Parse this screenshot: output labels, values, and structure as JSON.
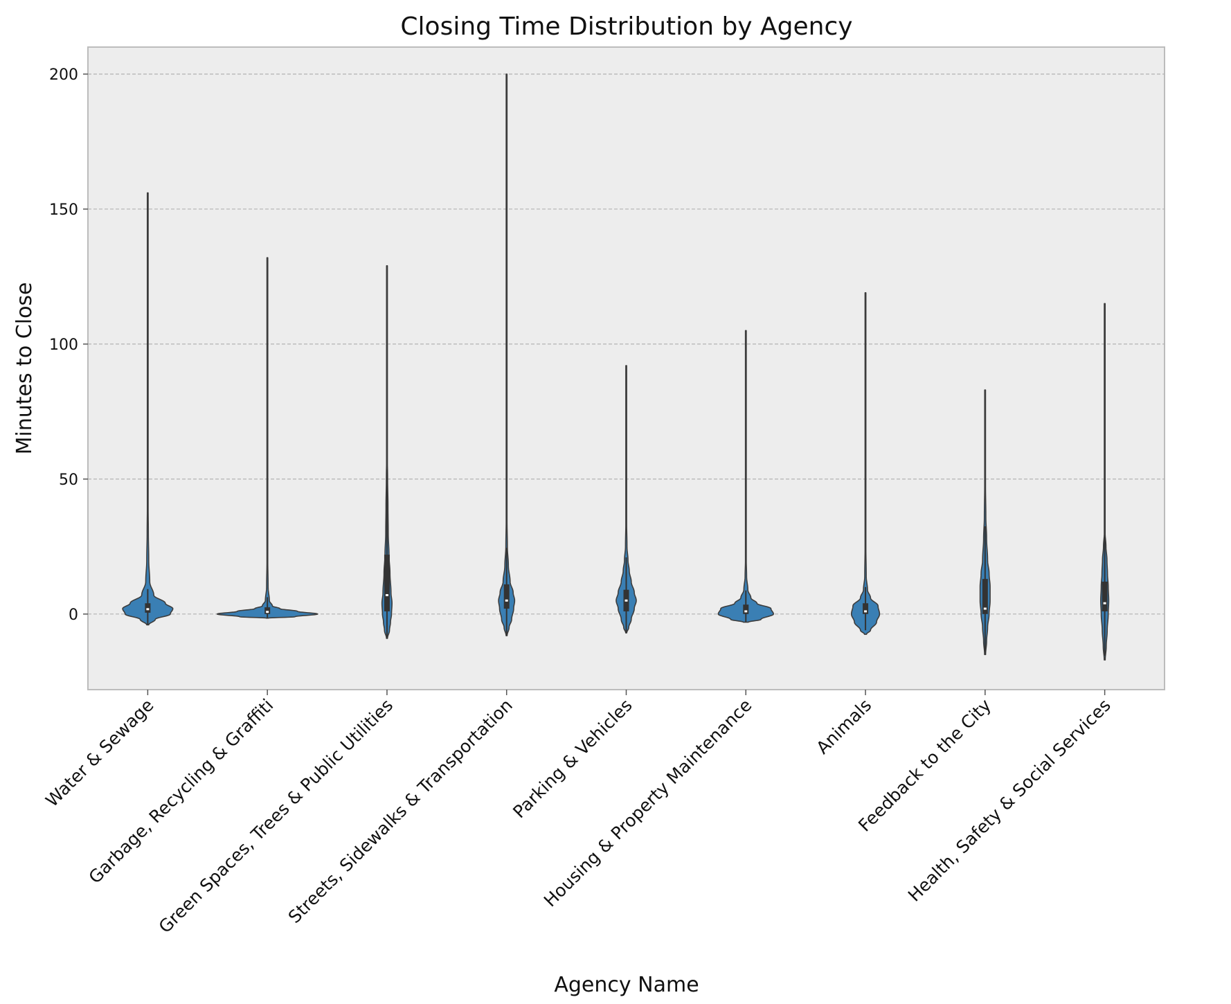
{
  "chart_data": {
    "type": "violin",
    "title": "Closing Time Distribution by Agency",
    "xlabel": "Agency Name",
    "ylabel": "Minutes to Close",
    "ylim": [
      -28,
      210
    ],
    "yticks": [
      0,
      50,
      100,
      150,
      200
    ],
    "grid": "y-dashed",
    "colors": {
      "violin": "#3a7fb4",
      "outline": "#3c3c3c",
      "plot_bg": "#ededed",
      "grid": "#b2b2b2"
    },
    "categories": [
      "Water & Sewage",
      "Garbage, Recycling & Graffiti",
      "Green Spaces, Trees & Public Utilities",
      "Streets, Sidewalks & Transportation",
      "Parking & Vehicles",
      "Housing & Property Maintenance",
      "Animals",
      "Feedback to the City",
      "Health, Safety & Social Services"
    ],
    "violins": [
      {
        "name": "Water & Sewage",
        "min": -4,
        "max": 156,
        "q1": 0.5,
        "median": 1.8,
        "q3": 4,
        "profile": [
          [
            -4,
            0.02
          ],
          [
            -2,
            0.15
          ],
          [
            0,
            0.45
          ],
          [
            2,
            0.5
          ],
          [
            4,
            0.35
          ],
          [
            7,
            0.12
          ],
          [
            12,
            0.04
          ],
          [
            20,
            0.02
          ],
          [
            30,
            0.012
          ],
          [
            40,
            0.008
          ],
          [
            60,
            0.004
          ],
          [
            100,
            0.003
          ],
          [
            156,
            0.002
          ]
        ]
      },
      {
        "name": "Garbage, Recycling & Graffiti",
        "min": -1.5,
        "max": 132,
        "q1": 0,
        "median": 0.8,
        "q3": 2.5,
        "profile": [
          [
            -1.5,
            0.02
          ],
          [
            -1,
            0.55
          ],
          [
            0,
            1.0
          ],
          [
            1,
            0.6
          ],
          [
            2,
            0.25
          ],
          [
            3,
            0.1
          ],
          [
            5,
            0.04
          ],
          [
            10,
            0.015
          ],
          [
            20,
            0.008
          ],
          [
            40,
            0.005
          ],
          [
            80,
            0.003
          ],
          [
            132,
            0.002
          ]
        ]
      },
      {
        "name": "Green Spaces, Trees & Public Utilities",
        "min": -9,
        "max": 129,
        "q1": 1,
        "median": 7,
        "q3": 22,
        "profile": [
          [
            -9,
            0.01
          ],
          [
            -6,
            0.05
          ],
          [
            -3,
            0.07
          ],
          [
            0,
            0.09
          ],
          [
            4,
            0.1
          ],
          [
            8,
            0.08
          ],
          [
            15,
            0.06
          ],
          [
            22,
            0.04
          ],
          [
            30,
            0.025
          ],
          [
            40,
            0.02
          ],
          [
            50,
            0.012
          ],
          [
            60,
            0.005
          ],
          [
            80,
            0.003
          ],
          [
            129,
            0.002
          ]
        ]
      },
      {
        "name": "Streets, Sidewalks & Transportation",
        "min": -8,
        "max": 200,
        "q1": 2,
        "median": 5,
        "q3": 11,
        "profile": [
          [
            -8,
            0.01
          ],
          [
            -5,
            0.05
          ],
          [
            -2,
            0.1
          ],
          [
            2,
            0.14
          ],
          [
            5,
            0.16
          ],
          [
            8,
            0.13
          ],
          [
            12,
            0.07
          ],
          [
            18,
            0.035
          ],
          [
            25,
            0.015
          ],
          [
            35,
            0.008
          ],
          [
            60,
            0.004
          ],
          [
            100,
            0.003
          ],
          [
            150,
            0.002
          ],
          [
            200,
            0.002
          ]
        ]
      },
      {
        "name": "Parking & Vehicles",
        "min": -7,
        "max": 92,
        "q1": 1,
        "median": 5,
        "q3": 9,
        "profile": [
          [
            -7,
            0.01
          ],
          [
            -5,
            0.05
          ],
          [
            -2,
            0.1
          ],
          [
            2,
            0.16
          ],
          [
            5,
            0.2
          ],
          [
            8,
            0.16
          ],
          [
            12,
            0.1
          ],
          [
            16,
            0.06
          ],
          [
            20,
            0.035
          ],
          [
            25,
            0.015
          ],
          [
            35,
            0.007
          ],
          [
            60,
            0.004
          ],
          [
            92,
            0.002
          ]
        ]
      },
      {
        "name": "Housing & Property Maintenance",
        "min": -3,
        "max": 105,
        "q1": 0,
        "median": 1,
        "q3": 3.5,
        "profile": [
          [
            -3,
            0.05
          ],
          [
            -2,
            0.3
          ],
          [
            0,
            0.55
          ],
          [
            2,
            0.5
          ],
          [
            4,
            0.22
          ],
          [
            6,
            0.1
          ],
          [
            9,
            0.04
          ],
          [
            14,
            0.015
          ],
          [
            20,
            0.008
          ],
          [
            40,
            0.004
          ],
          [
            70,
            0.003
          ],
          [
            105,
            0.002
          ]
        ]
      },
      {
        "name": "Animals",
        "min": -7.5,
        "max": 119,
        "q1": 0,
        "median": 1,
        "q3": 4,
        "profile": [
          [
            -7.5,
            0.02
          ],
          [
            -6,
            0.1
          ],
          [
            -3,
            0.22
          ],
          [
            0,
            0.28
          ],
          [
            3,
            0.25
          ],
          [
            6,
            0.1
          ],
          [
            9,
            0.04
          ],
          [
            14,
            0.015
          ],
          [
            25,
            0.008
          ],
          [
            50,
            0.004
          ],
          [
            80,
            0.003
          ],
          [
            119,
            0.002
          ]
        ]
      },
      {
        "name": "Feedback to the City",
        "min": -15,
        "max": 83,
        "q1": 0,
        "median": 2,
        "q3": 13,
        "profile": [
          [
            -15,
            0.01
          ],
          [
            -10,
            0.03
          ],
          [
            -5,
            0.05
          ],
          [
            0,
            0.08
          ],
          [
            5,
            0.1
          ],
          [
            10,
            0.1
          ],
          [
            15,
            0.08
          ],
          [
            20,
            0.05
          ],
          [
            28,
            0.03
          ],
          [
            36,
            0.015
          ],
          [
            48,
            0.008
          ],
          [
            60,
            0.005
          ],
          [
            83,
            0.002
          ]
        ]
      },
      {
        "name": "Health, Safety & Social Services",
        "min": -17,
        "max": 115,
        "q1": 1,
        "median": 4,
        "q3": 12,
        "profile": [
          [
            -17,
            0.01
          ],
          [
            -12,
            0.03
          ],
          [
            -6,
            0.05
          ],
          [
            0,
            0.07
          ],
          [
            5,
            0.08
          ],
          [
            10,
            0.07
          ],
          [
            15,
            0.055
          ],
          [
            20,
            0.045
          ],
          [
            25,
            0.025
          ],
          [
            30,
            0.008
          ],
          [
            50,
            0.004
          ],
          [
            80,
            0.003
          ],
          [
            115,
            0.002
          ]
        ]
      }
    ]
  }
}
